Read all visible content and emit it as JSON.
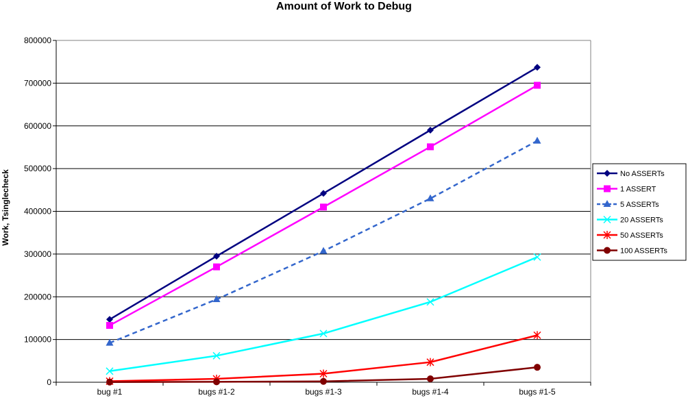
{
  "chart_data": {
    "type": "line",
    "title": "Amount  of Work to Debug",
    "ylabel": "Work, Tsinglecheck",
    "xlabel": "",
    "categories": [
      "bug #1",
      "bugs #1-2",
      "bugs #1-3",
      "bugs #1-4",
      "bugs #1-5"
    ],
    "ylim": [
      0,
      800000
    ],
    "yticks": [
      0,
      100000,
      200000,
      300000,
      400000,
      500000,
      600000,
      700000,
      800000
    ],
    "grid": "horizontal",
    "legend_position": "right",
    "series": [
      {
        "name": "No ASSERTs",
        "color": "#000080",
        "marker": "diamond",
        "dash": "solid",
        "values": [
          147000,
          295000,
          442000,
          590000,
          737000
        ]
      },
      {
        "name": "1 ASSERT",
        "color": "#ff00ff",
        "marker": "square",
        "dash": "solid",
        "values": [
          133000,
          270000,
          410000,
          551000,
          695000
        ]
      },
      {
        "name": "5 ASSERTs",
        "color": "#3366cc",
        "marker": "triangle",
        "dash": "dashed",
        "values": [
          92000,
          194000,
          307000,
          430000,
          565000
        ]
      },
      {
        "name": "20 ASSERTs",
        "color": "#00ffff",
        "marker": "x",
        "dash": "solid",
        "values": [
          26000,
          62000,
          114000,
          188000,
          293000
        ]
      },
      {
        "name": "50 ASSERTs",
        "color": "#ff0000",
        "marker": "star",
        "dash": "solid",
        "values": [
          2500,
          8000,
          20000,
          47000,
          110000
        ]
      },
      {
        "name": "100 ASSERTs",
        "color": "#800000",
        "marker": "circle",
        "dash": "solid",
        "values": [
          500,
          1000,
          2000,
          8000,
          35000
        ]
      }
    ]
  }
}
